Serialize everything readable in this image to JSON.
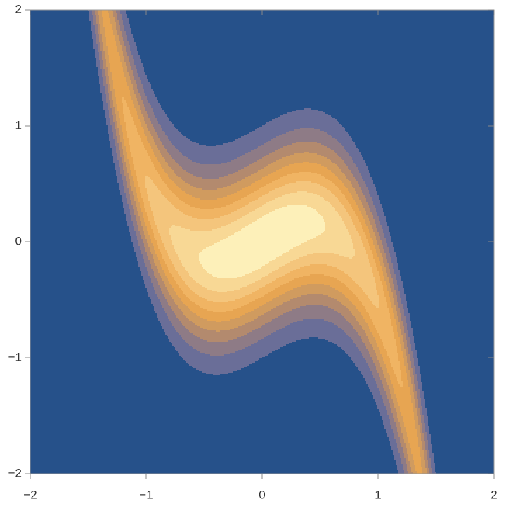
{
  "chart_data": {
    "type": "contour",
    "xlim": [
      -2,
      2
    ],
    "ylim": [
      -2,
      2
    ],
    "xticks": [
      {
        "value": -2,
        "label": "−2"
      },
      {
        "value": -1,
        "label": "−1"
      },
      0,
      1,
      2
    ],
    "yticks": [
      {
        "value": -2,
        "label": "−2"
      },
      {
        "value": -1,
        "label": "−1"
      },
      0,
      1,
      2
    ],
    "levels": [
      0.1,
      0.2,
      0.3,
      0.4,
      0.5,
      0.6,
      0.7,
      0.8,
      0.9
    ],
    "colors": [
      "#26518a",
      "#6a6e98",
      "#8e7b86",
      "#b38a6e",
      "#d09b5f",
      "#e7a552",
      "#f0b463",
      "#f4c57c",
      "#f8d895",
      "#fdf0b9"
    ]
  }
}
